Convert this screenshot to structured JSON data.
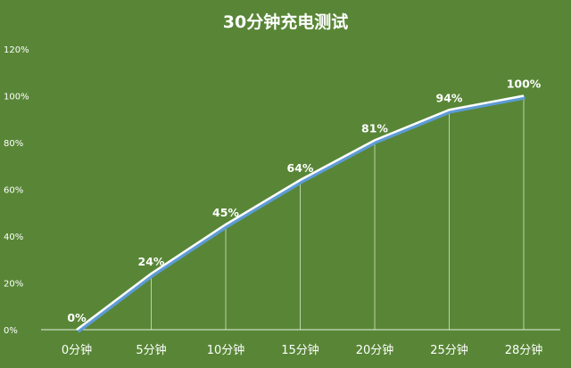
{
  "chart_data": {
    "type": "line",
    "title": "30分钟充电测试",
    "xlabel": "",
    "ylabel": "",
    "categories": [
      "0分钟",
      "5分钟",
      "10分钟",
      "15分钟",
      "20分钟",
      "25分钟",
      "28分钟"
    ],
    "series": [
      {
        "values": [
          0,
          24,
          45,
          64,
          81,
          94,
          100
        ],
        "data_labels": [
          "0%",
          "24%",
          "45%",
          "64%",
          "81%",
          "94%",
          "100%"
        ]
      }
    ],
    "y_ticks": [
      "0%",
      "20%",
      "40%",
      "60%",
      "80%",
      "100%",
      "120%"
    ],
    "ylim": [
      0,
      120
    ],
    "grid": false,
    "drop_lines": true,
    "legend": "none",
    "colors": {
      "background": "#588636",
      "line": "#ffffff",
      "line_shadow": "#5d9bd6",
      "drop_line": "#d6e6c6",
      "axis": "#e6efe0",
      "text": "#ffffff"
    }
  }
}
